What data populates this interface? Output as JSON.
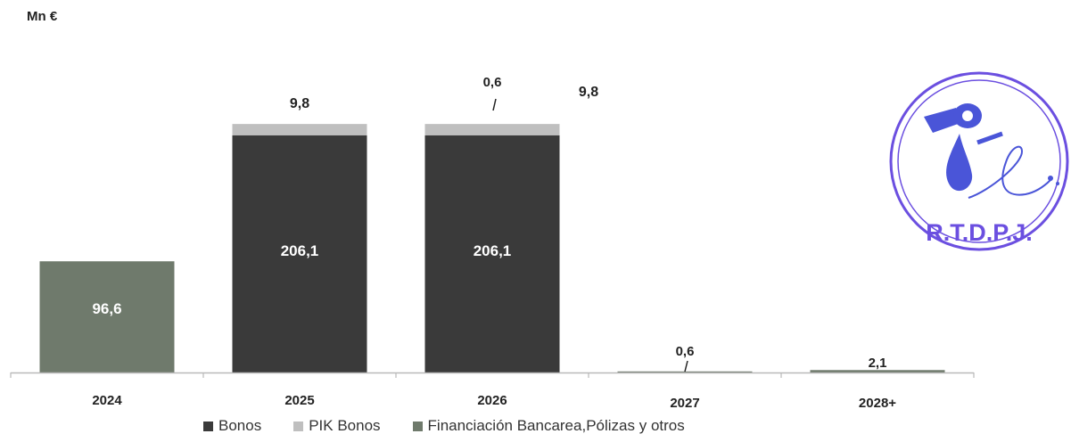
{
  "chart_data": {
    "type": "bar",
    "stacked": true,
    "unit": "Mn €",
    "categories": [
      "2024",
      "2025",
      "2026",
      "2027",
      "2028+"
    ],
    "series": [
      {
        "name": "Bonos",
        "color": "#3a3a3a",
        "values": [
          0,
          206.1,
          206.1,
          0,
          0
        ]
      },
      {
        "name": "PIK Bonos",
        "color": "#bfbfbf",
        "values": [
          0,
          9.8,
          9.8,
          0,
          0
        ]
      },
      {
        "name": "Financiación Bancarea,Pólizas y otros",
        "color": "#6f7a6c",
        "values": [
          96.6,
          0,
          0.6,
          0.6,
          2.1
        ]
      }
    ],
    "data_labels": {
      "2024": {
        "inside": "96,6"
      },
      "2025": {
        "inside": "206,1",
        "top": "9,8"
      },
      "2026": {
        "inside": "206,1",
        "top": "9,8",
        "extra": "0,6"
      },
      "2027": {
        "top": "0,6"
      },
      "2028+": {
        "top": "2,1"
      }
    },
    "legend_position": "bottom",
    "grid": false
  },
  "stamp": {
    "text": "R.T.D.P.J.",
    "color": "#6b4fe0"
  }
}
